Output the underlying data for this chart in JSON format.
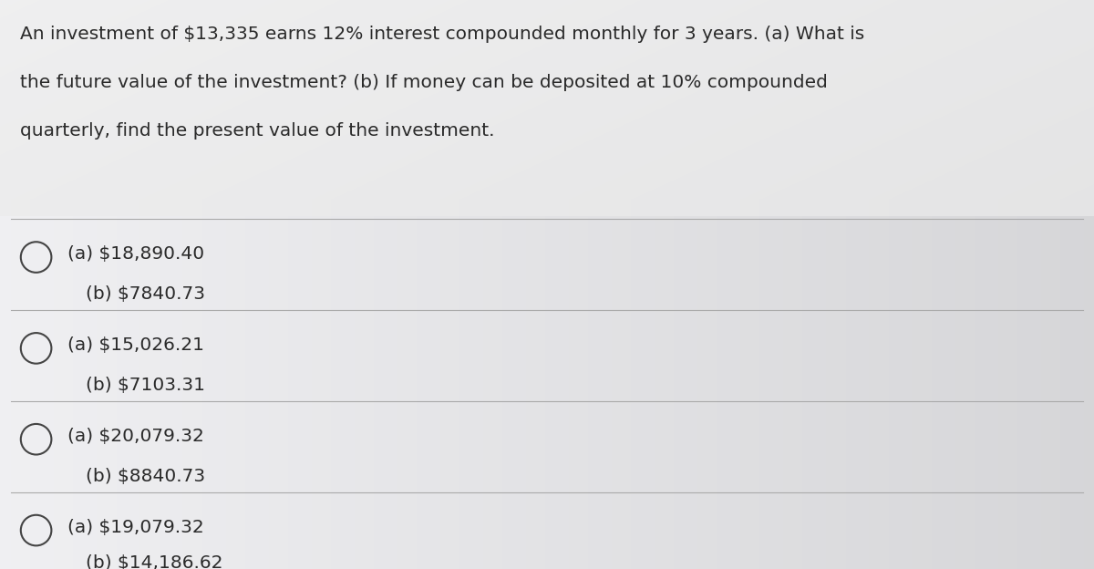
{
  "background_color_left": "#e8e8e8",
  "background_color_right": "#c8c8cc",
  "content_bg_top": "#f0f0f0",
  "question_text_lines": [
    "An investment of $13,335 earns 12% interest compounded monthly for 3 years. (a) What is",
    "the future value of the investment? (b) If money can be deposited at 10% compounded",
    "quarterly, find the present value of the investment."
  ],
  "options": [
    {
      "line1": "(a) $18,890.40",
      "line2": "(b) $7840.73"
    },
    {
      "line1": "(a) $15,026.21",
      "line2": "(b) $7103.31"
    },
    {
      "line1": "(a) $20,079.32",
      "line2": "(b) $8840.73"
    },
    {
      "line1": "(a) $19,079.32",
      "line2": "(b) $14,186.62"
    }
  ],
  "text_color": "#2a2a2a",
  "question_fontsize": 14.5,
  "option_fontsize": 14.5,
  "divider_color": "#aaaaaa",
  "circle_color": "#444444",
  "circle_linewidth": 1.5
}
